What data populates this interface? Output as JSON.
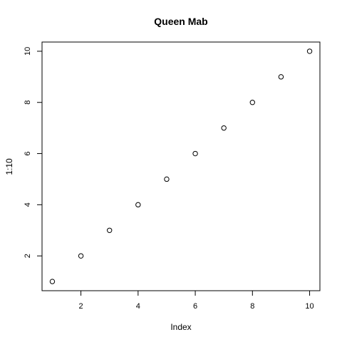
{
  "chart_data": {
    "type": "scatter",
    "title": "Queen Mab",
    "xlabel": "Index",
    "ylabel": "1:10",
    "x": [
      1,
      2,
      3,
      4,
      5,
      6,
      7,
      8,
      9,
      10
    ],
    "y": [
      1,
      2,
      3,
      4,
      5,
      6,
      7,
      8,
      9,
      10
    ],
    "xlim": [
      0.64,
      10.36
    ],
    "ylim": [
      0.64,
      10.36
    ],
    "x_ticks": [
      2,
      4,
      6,
      8,
      10
    ],
    "y_ticks": [
      2,
      4,
      6,
      8,
      10
    ],
    "grid": false,
    "legend": "none",
    "marker": "open-circle",
    "marker_color": "#000000"
  }
}
